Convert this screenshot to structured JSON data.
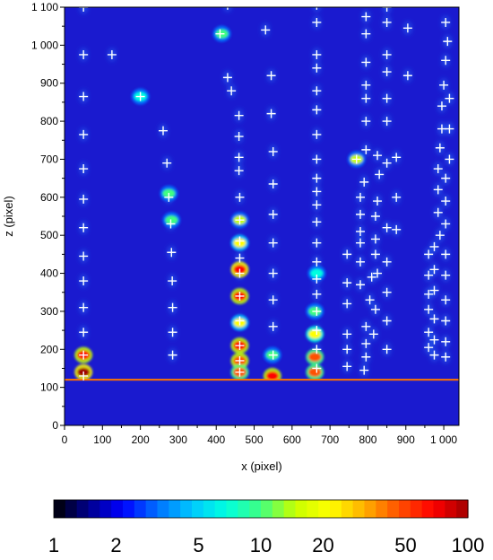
{
  "chart_data": {
    "type": "heatmap",
    "xlabel": "x (pixel)",
    "ylabel": "z (pixel)",
    "xlim": [
      0,
      1040
    ],
    "ylim": [
      0,
      1100
    ],
    "x_ticks": [
      {
        "value": 0,
        "label": "0"
      },
      {
        "value": 100,
        "label": "100"
      },
      {
        "value": 200,
        "label": "200"
      },
      {
        "value": 300,
        "label": "300"
      },
      {
        "value": 400,
        "label": "400"
      },
      {
        "value": 500,
        "label": "500"
      },
      {
        "value": 600,
        "label": "600"
      },
      {
        "value": 700,
        "label": "700"
      },
      {
        "value": 800,
        "label": "800"
      },
      {
        "value": 900,
        "label": "900"
      },
      {
        "value": 1000,
        "label": "1 000"
      }
    ],
    "y_ticks": [
      {
        "value": 0,
        "label": "0"
      },
      {
        "value": 100,
        "label": "100"
      },
      {
        "value": 200,
        "label": "200"
      },
      {
        "value": 300,
        "label": "300"
      },
      {
        "value": 400,
        "label": "400"
      },
      {
        "value": 500,
        "label": "500"
      },
      {
        "value": 600,
        "label": "600"
      },
      {
        "value": 700,
        "label": "700"
      },
      {
        "value": 800,
        "label": "800"
      },
      {
        "value": 900,
        "label": "900"
      },
      {
        "value": 1000,
        "label": "1 000"
      },
      {
        "value": 1100,
        "label": "1 100"
      }
    ],
    "surface_line_z": 120,
    "colorbar": {
      "scale": "log",
      "min": 1,
      "max": 100,
      "labels": [
        {
          "value": 1,
          "label": "1"
        },
        {
          "value": 2,
          "label": "2"
        },
        {
          "value": 5,
          "label": "5"
        },
        {
          "value": 10,
          "label": "10"
        },
        {
          "value": 20,
          "label": "20"
        },
        {
          "value": 50,
          "label": "50"
        },
        {
          "value": 100,
          "label": "100"
        }
      ],
      "colors": [
        "#000000",
        "#00008b",
        "#0000ff",
        "#0070ff",
        "#00c8ff",
        "#00ffe0",
        "#40ff80",
        "#c8ff00",
        "#ffff00",
        "#ffb000",
        "#ff5000",
        "#ff0000",
        "#a00000"
      ]
    },
    "background_color": "#1a1acf",
    "marker_color": "#ffffff",
    "markers": [
      [
        50,
        1100
      ],
      [
        50,
        975
      ],
      [
        50,
        865
      ],
      [
        50,
        765
      ],
      [
        50,
        675
      ],
      [
        50,
        595
      ],
      [
        50,
        520
      ],
      [
        50,
        445
      ],
      [
        50,
        380
      ],
      [
        50,
        310
      ],
      [
        50,
        245
      ],
      [
        50,
        185
      ],
      [
        50,
        130
      ],
      [
        125,
        975
      ],
      [
        200,
        865
      ],
      [
        260,
        775
      ],
      [
        270,
        690
      ],
      [
        275,
        600
      ],
      [
        280,
        530
      ],
      [
        282,
        455
      ],
      [
        284,
        380
      ],
      [
        285,
        310
      ],
      [
        285,
        245
      ],
      [
        285,
        185
      ],
      [
        430,
        1105
      ],
      [
        410,
        1030
      ],
      [
        430,
        915
      ],
      [
        440,
        880
      ],
      [
        460,
        815
      ],
      [
        460,
        760
      ],
      [
        460,
        705
      ],
      [
        460,
        670
      ],
      [
        462,
        600
      ],
      [
        462,
        540
      ],
      [
        462,
        485
      ],
      [
        462,
        440
      ],
      [
        462,
        400
      ],
      [
        462,
        340
      ],
      [
        462,
        275
      ],
      [
        462,
        210
      ],
      [
        462,
        170
      ],
      [
        462,
        140
      ],
      [
        530,
        1040
      ],
      [
        545,
        920
      ],
      [
        545,
        820
      ],
      [
        550,
        720
      ],
      [
        550,
        635
      ],
      [
        550,
        555
      ],
      [
        550,
        480
      ],
      [
        550,
        400
      ],
      [
        550,
        330
      ],
      [
        550,
        260
      ],
      [
        550,
        185
      ],
      [
        665,
        1105
      ],
      [
        665,
        1060
      ],
      [
        665,
        975
      ],
      [
        665,
        940
      ],
      [
        665,
        880
      ],
      [
        665,
        830
      ],
      [
        665,
        765
      ],
      [
        665,
        700
      ],
      [
        665,
        650
      ],
      [
        665,
        615
      ],
      [
        665,
        580
      ],
      [
        665,
        535
      ],
      [
        665,
        480
      ],
      [
        665,
        430
      ],
      [
        665,
        385
      ],
      [
        665,
        345
      ],
      [
        665,
        300
      ],
      [
        665,
        250
      ],
      [
        665,
        200
      ],
      [
        665,
        150
      ],
      [
        745,
        450
      ],
      [
        745,
        375
      ],
      [
        745,
        320
      ],
      [
        745,
        240
      ],
      [
        745,
        200
      ],
      [
        745,
        155
      ],
      [
        770,
        700
      ],
      [
        780,
        600
      ],
      [
        780,
        555
      ],
      [
        780,
        510
      ],
      [
        780,
        480
      ],
      [
        780,
        430
      ],
      [
        780,
        370
      ],
      [
        795,
        1075
      ],
      [
        795,
        1030
      ],
      [
        795,
        955
      ],
      [
        795,
        895
      ],
      [
        795,
        860
      ],
      [
        795,
        800
      ],
      [
        795,
        725
      ],
      [
        790,
        640
      ],
      [
        795,
        260
      ],
      [
        795,
        215
      ],
      [
        795,
        180
      ],
      [
        790,
        145
      ],
      [
        805,
        330
      ],
      [
        810,
        390
      ],
      [
        825,
        710
      ],
      [
        830,
        660
      ],
      [
        825,
        590
      ],
      [
        820,
        550
      ],
      [
        820,
        490
      ],
      [
        820,
        450
      ],
      [
        825,
        400
      ],
      [
        820,
        305
      ],
      [
        815,
        240
      ],
      [
        850,
        1100
      ],
      [
        850,
        1060
      ],
      [
        850,
        975
      ],
      [
        850,
        930
      ],
      [
        850,
        860
      ],
      [
        850,
        800
      ],
      [
        850,
        690
      ],
      [
        850,
        520
      ],
      [
        850,
        430
      ],
      [
        850,
        350
      ],
      [
        850,
        275
      ],
      [
        850,
        200
      ],
      [
        875,
        705
      ],
      [
        875,
        600
      ],
      [
        875,
        515
      ],
      [
        905,
        1045
      ],
      [
        905,
        920
      ],
      [
        960,
        450
      ],
      [
        960,
        395
      ],
      [
        960,
        345
      ],
      [
        960,
        305
      ],
      [
        960,
        245
      ],
      [
        960,
        205
      ],
      [
        975,
        470
      ],
      [
        975,
        410
      ],
      [
        975,
        355
      ],
      [
        975,
        280
      ],
      [
        975,
        225
      ],
      [
        975,
        185
      ],
      [
        990,
        500
      ],
      [
        985,
        560
      ],
      [
        985,
        620
      ],
      [
        985,
        675
      ],
      [
        990,
        730
      ],
      [
        995,
        780
      ],
      [
        995,
        840
      ],
      [
        1000,
        895
      ],
      [
        1005,
        960
      ],
      [
        1010,
        1010
      ],
      [
        1005,
        1060
      ],
      [
        1005,
        180
      ],
      [
        1005,
        220
      ],
      [
        1005,
        275
      ],
      [
        1005,
        330
      ],
      [
        1005,
        395
      ],
      [
        1005,
        450
      ],
      [
        1005,
        530
      ],
      [
        1005,
        590
      ],
      [
        1005,
        650
      ],
      [
        1015,
        700
      ],
      [
        1015,
        780
      ],
      [
        1015,
        860
      ]
    ],
    "hot_spots": [
      {
        "x": 50,
        "z": 140,
        "level": 100
      },
      {
        "x": 50,
        "z": 185,
        "level": 60
      },
      {
        "x": 462,
        "z": 410,
        "level": 80
      },
      {
        "x": 462,
        "z": 340,
        "level": 70
      },
      {
        "x": 462,
        "z": 210,
        "level": 70
      },
      {
        "x": 462,
        "z": 170,
        "level": 50
      },
      {
        "x": 462,
        "z": 140,
        "level": 40
      },
      {
        "x": 462,
        "z": 270,
        "level": 20
      },
      {
        "x": 462,
        "z": 480,
        "level": 20
      },
      {
        "x": 462,
        "z": 540,
        "level": 15
      },
      {
        "x": 548,
        "z": 130,
        "level": 60
      },
      {
        "x": 548,
        "z": 185,
        "level": 12
      },
      {
        "x": 660,
        "z": 180,
        "level": 40
      },
      {
        "x": 660,
        "z": 240,
        "level": 25
      },
      {
        "x": 660,
        "z": 140,
        "level": 45
      },
      {
        "x": 660,
        "z": 300,
        "level": 12
      },
      {
        "x": 665,
        "z": 400,
        "level": 8
      },
      {
        "x": 770,
        "z": 700,
        "level": 15
      },
      {
        "x": 415,
        "z": 1030,
        "level": 10
      },
      {
        "x": 282,
        "z": 540,
        "level": 10
      },
      {
        "x": 275,
        "z": 610,
        "level": 9
      },
      {
        "x": 200,
        "z": 865,
        "level": 8
      }
    ]
  }
}
